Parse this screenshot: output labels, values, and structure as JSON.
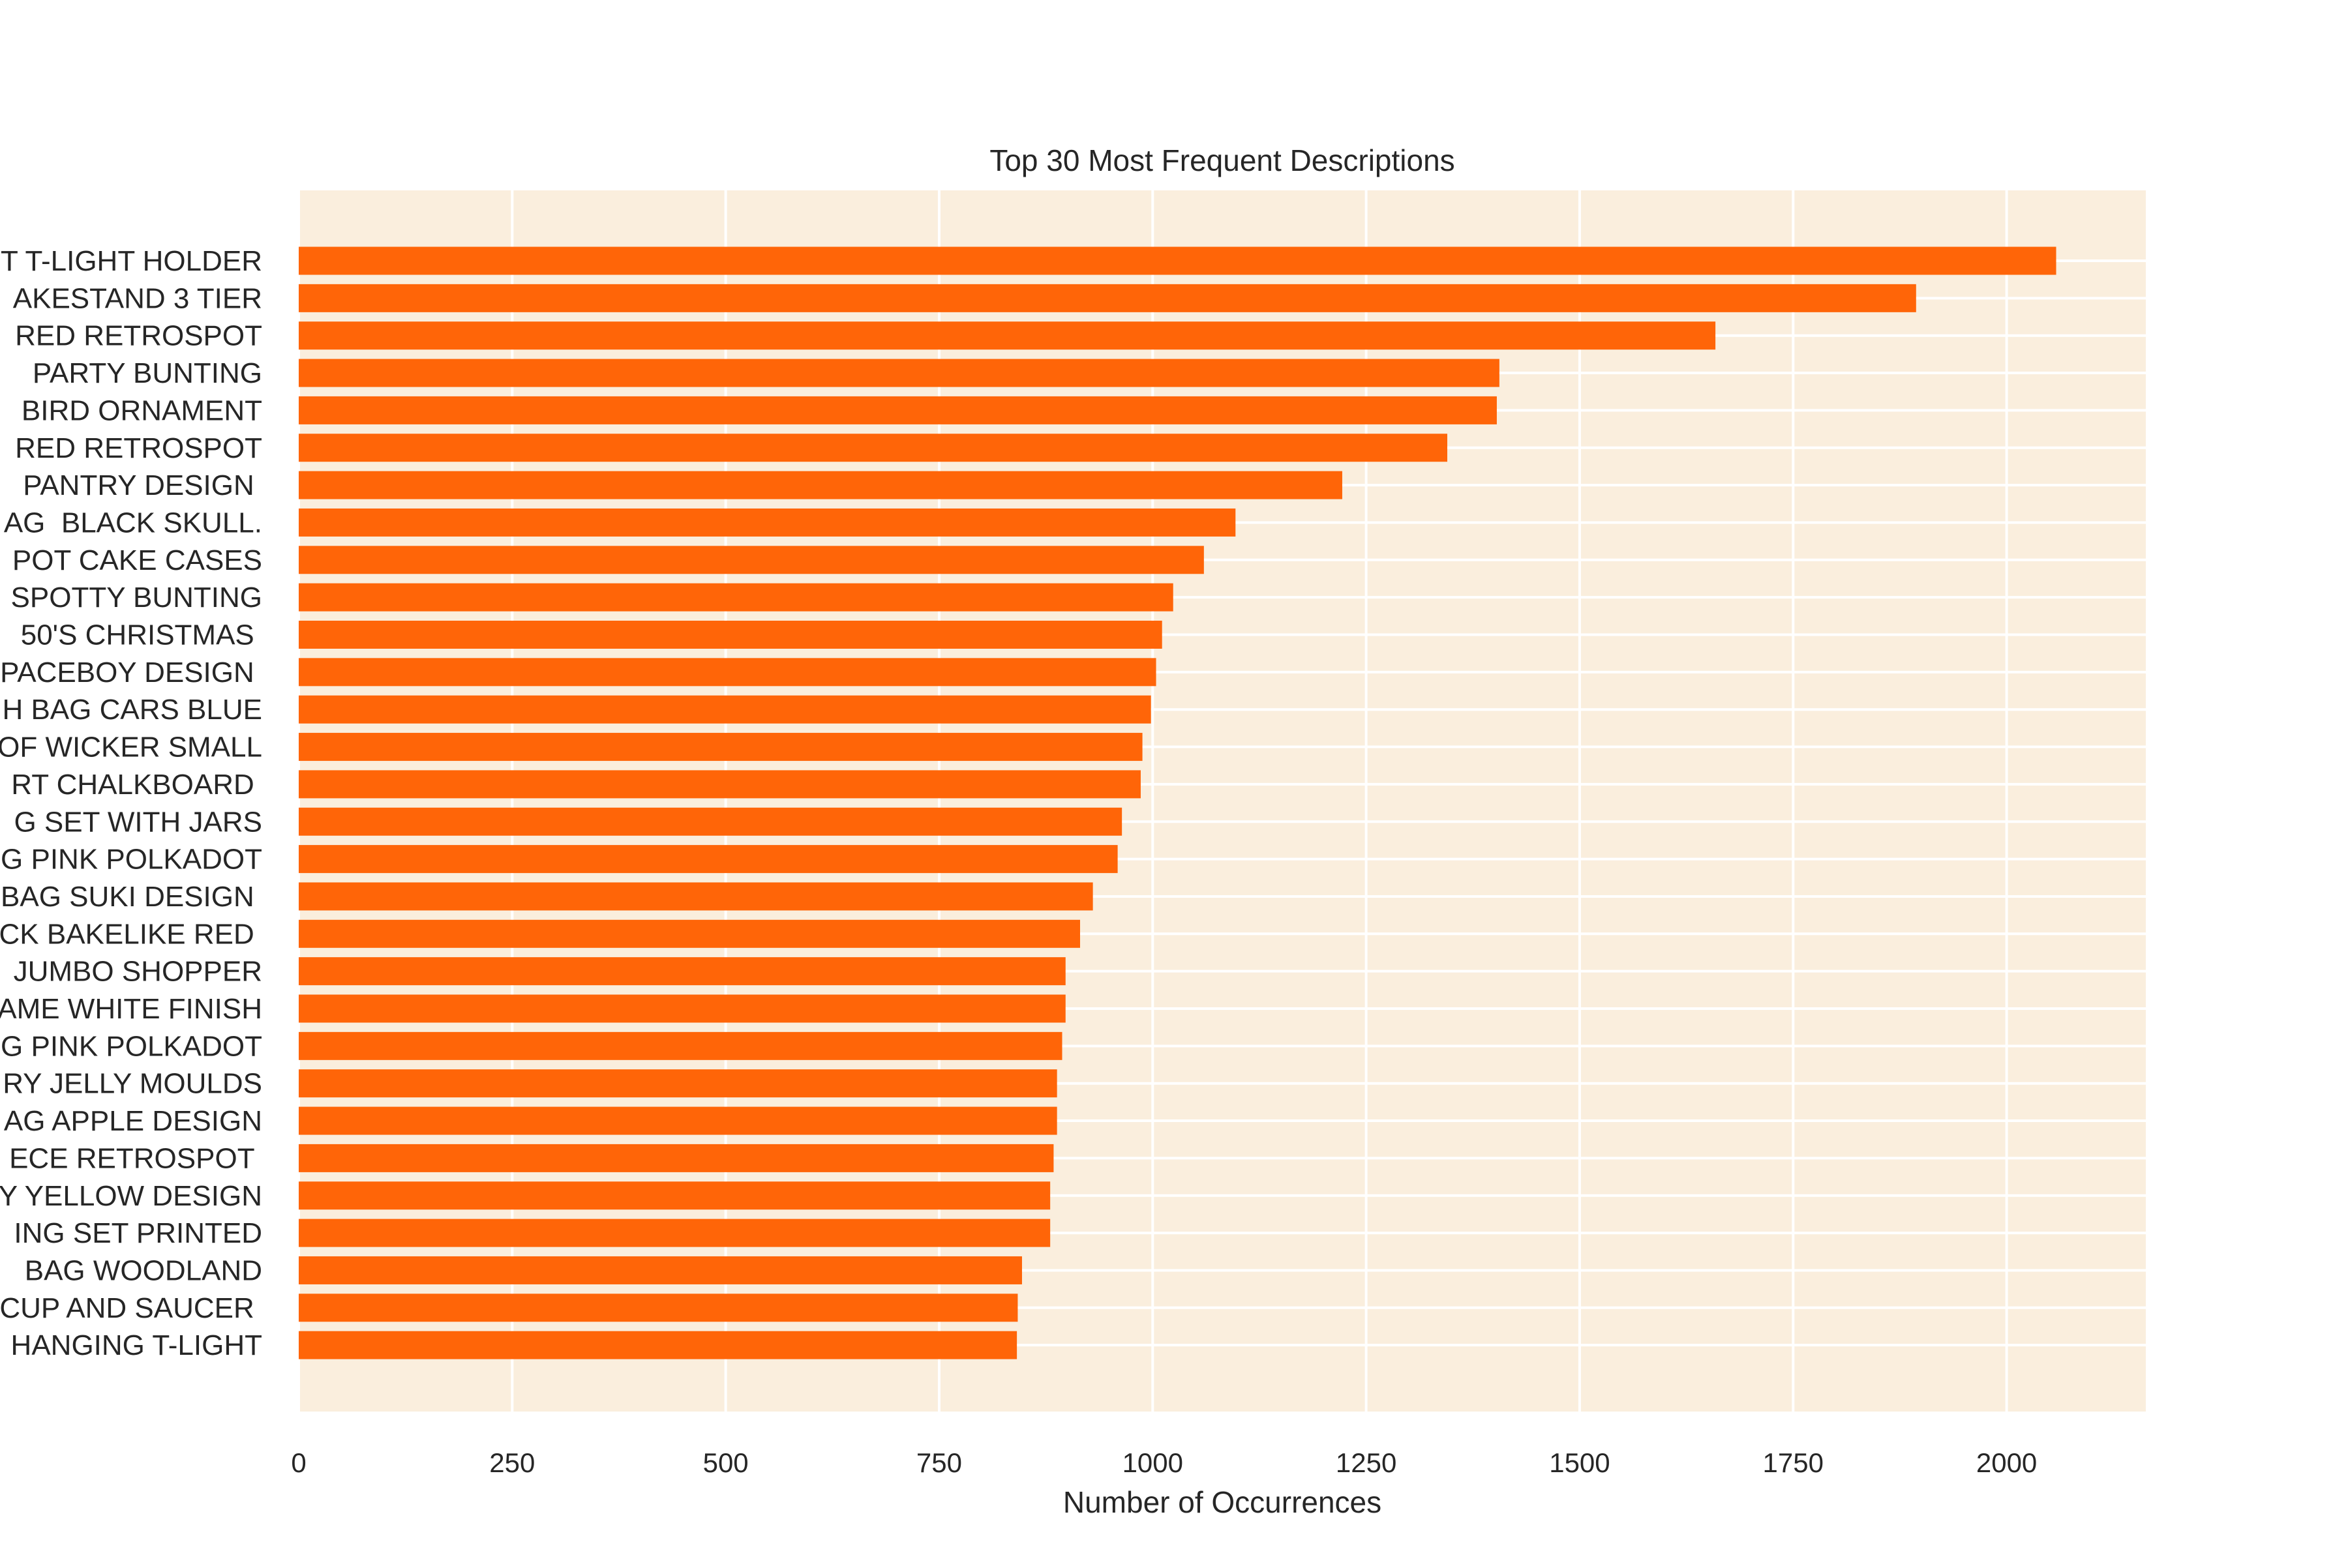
{
  "chart_data": {
    "type": "bar",
    "orientation": "horizontal",
    "title": "Top 30 Most Frequent Descriptions",
    "xlabel": "Number of Occurrences",
    "ylabel": "",
    "xlim": [
      0,
      2163
    ],
    "xticks": [
      0,
      250,
      500,
      750,
      1000,
      1250,
      1500,
      1750,
      2000
    ],
    "grid": true,
    "colors": {
      "bar": "#ff6508",
      "plot_background": "#faeedd",
      "grid": "#ffffff",
      "text": "#262626"
    },
    "categories": [
      "T T-LIGHT HOLDER",
      "AKESTAND 3 TIER",
      "RED RETROSPOT",
      " PARTY BUNTING",
      " BIRD ORNAMENT",
      "RED RETROSPOT",
      " PANTRY DESIGN ",
      "AG  BLACK SKULL.",
      "POT CAKE CASES",
      "SPOTTY BUNTING",
      " 50'S CHRISTMAS ",
      "PACEBOY DESIGN ",
      "H BAG CARS BLUE",
      "OF WICKER SMALL",
      "RT CHALKBOARD ",
      "G SET WITH JARS",
      "G PINK POLKADOT",
      "BAG SUKI DESIGN ",
      "CK BAKELIKE RED ",
      "JUMBO SHOPPER",
      "AME WHITE FINISH",
      "G PINK POLKADOT",
      "RY JELLY MOULDS",
      "AG APPLE DESIGN",
      "ECE RETROSPOT ",
      "Y YELLOW DESIGN",
      "ING SET PRINTED",
      " BAG WOODLAND",
      "CUP AND SAUCER ",
      "HANGING T-LIGHT"
    ],
    "values": [
      2058,
      1894,
      1659,
      1406,
      1403,
      1345,
      1222,
      1097,
      1060,
      1024,
      1011,
      1004,
      998,
      988,
      986,
      964,
      959,
      930,
      915,
      898,
      898,
      894,
      888,
      888,
      884,
      880,
      880,
      847,
      842,
      841
    ]
  }
}
